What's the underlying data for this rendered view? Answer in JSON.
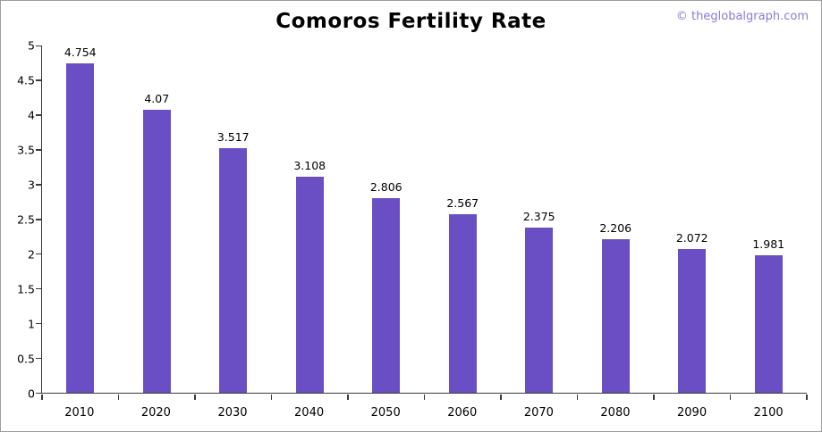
{
  "page": {
    "title": "Comoros Fertility Rate",
    "watermark": "© theglobalgraph.com"
  },
  "colors": {
    "bar": "#6a4fc4",
    "watermark": "#8a7ad8",
    "axis": "#3a3a3a"
  },
  "chart_data": {
    "type": "bar",
    "title": "Comoros Fertility Rate",
    "categories": [
      "2010",
      "2020",
      "2030",
      "2040",
      "2050",
      "2060",
      "2070",
      "2080",
      "2090",
      "2100"
    ],
    "values": [
      4.754,
      4.07,
      3.517,
      3.108,
      2.806,
      2.567,
      2.375,
      2.206,
      2.072,
      1.981
    ],
    "bar_color": "#6a4fc4",
    "xlabel": "",
    "ylabel": "",
    "ylim": [
      0,
      5
    ],
    "yticks": [
      0,
      0.5,
      1,
      1.5,
      2,
      2.5,
      3,
      3.5,
      4,
      4.5,
      5
    ],
    "grid": false,
    "legend": "none",
    "value_labels": true
  }
}
